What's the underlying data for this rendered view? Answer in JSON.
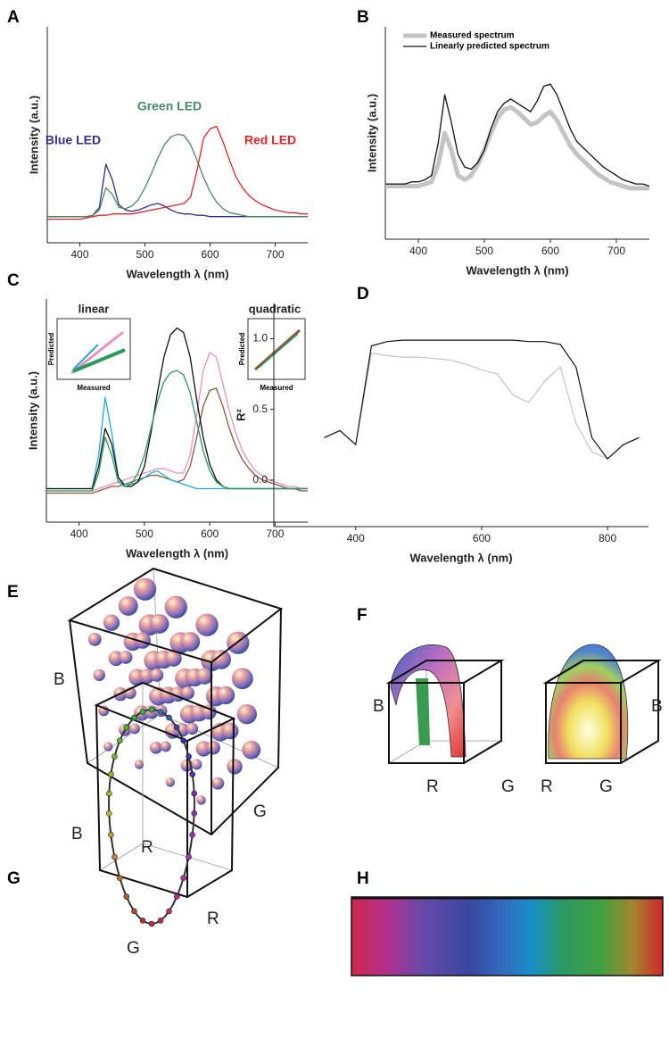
{
  "chart_data": [
    {
      "type": "line",
      "panel": "A",
      "x_label": "Wavelength λ (nm)",
      "y_label": "Intensity (a.u.)",
      "x": [
        350,
        360,
        370,
        380,
        390,
        400,
        410,
        420,
        430,
        440,
        450,
        460,
        470,
        480,
        490,
        500,
        510,
        520,
        530,
        540,
        550,
        560,
        570,
        580,
        590,
        600,
        610,
        620,
        630,
        640,
        650,
        660,
        670,
        680,
        690,
        700,
        710,
        720,
        730,
        740,
        750
      ],
      "xlim": [
        350,
        750
      ],
      "xticks": [
        400,
        500,
        600,
        700
      ],
      "ylim": [
        -0.15,
        1.5
      ],
      "series": [
        {
          "name": "Blue LED",
          "color": "#2e2e8e",
          "values": [
            0.05,
            0.05,
            0.05,
            0.05,
            0.05,
            0.05,
            0.05,
            0.06,
            0.12,
            0.45,
            0.33,
            0.14,
            0.1,
            0.09,
            0.1,
            0.12,
            0.14,
            0.15,
            0.13,
            0.1,
            0.08,
            0.07,
            0.07,
            0.06,
            0.06,
            0.05,
            0.05,
            0.05,
            0.05,
            0.05,
            0.05,
            0.05,
            0.05,
            0.05,
            0.05,
            0.05,
            0.05,
            0.05,
            0.05,
            0.05,
            0.05
          ]
        },
        {
          "name": "Green LED",
          "color": "#4a8a62",
          "values": [
            0.05,
            0.05,
            0.05,
            0.05,
            0.05,
            0.05,
            0.05,
            0.06,
            0.1,
            0.27,
            0.22,
            0.12,
            0.11,
            0.13,
            0.18,
            0.27,
            0.38,
            0.5,
            0.6,
            0.66,
            0.68,
            0.67,
            0.6,
            0.48,
            0.35,
            0.24,
            0.16,
            0.11,
            0.08,
            0.07,
            0.06,
            0.05,
            0.05,
            0.05,
            0.05,
            0.05,
            0.05,
            0.05,
            0.05,
            0.05,
            0.05
          ]
        },
        {
          "name": "Red LED",
          "color": "#e02424",
          "values": [
            0.03,
            0.03,
            0.03,
            0.03,
            0.03,
            0.03,
            0.04,
            0.05,
            0.06,
            0.06,
            0.07,
            0.07,
            0.07,
            0.07,
            0.08,
            0.09,
            0.1,
            0.11,
            0.12,
            0.13,
            0.14,
            0.15,
            0.2,
            0.4,
            0.65,
            0.72,
            0.74,
            0.62,
            0.48,
            0.35,
            0.27,
            0.21,
            0.17,
            0.14,
            0.12,
            0.1,
            0.09,
            0.08,
            0.08,
            0.07,
            0.07
          ]
        }
      ]
    },
    {
      "type": "line",
      "panel": "B",
      "x_label": "Wavelength λ (nm)",
      "y_label": "Intensity (a.u.)",
      "legend": "upper left",
      "x": [
        350,
        360,
        370,
        380,
        390,
        400,
        410,
        420,
        430,
        440,
        450,
        460,
        470,
        480,
        490,
        500,
        510,
        520,
        530,
        540,
        550,
        560,
        570,
        580,
        590,
        600,
        610,
        620,
        630,
        640,
        650,
        660,
        670,
        680,
        690,
        700,
        710,
        720,
        730,
        740,
        750
      ],
      "xlim": [
        350,
        750
      ],
      "xticks": [
        400,
        500,
        600,
        700
      ],
      "ylim": [
        0,
        1
      ],
      "series": [
        {
          "name": "Measured spectrum",
          "color": "#c4c4c4",
          "values": [
            0.25,
            0.25,
            0.25,
            0.25,
            0.25,
            0.25,
            0.26,
            0.27,
            0.35,
            0.5,
            0.42,
            0.3,
            0.28,
            0.3,
            0.35,
            0.42,
            0.5,
            0.57,
            0.61,
            0.62,
            0.6,
            0.57,
            0.54,
            0.55,
            0.58,
            0.6,
            0.56,
            0.5,
            0.44,
            0.4,
            0.37,
            0.34,
            0.31,
            0.29,
            0.27,
            0.26,
            0.25,
            0.24,
            0.24,
            0.24,
            0.24
          ]
        },
        {
          "name": "Linearly predicted spectrum",
          "color": "#111111",
          "values": [
            0.26,
            0.26,
            0.26,
            0.26,
            0.27,
            0.27,
            0.28,
            0.3,
            0.45,
            0.68,
            0.55,
            0.4,
            0.34,
            0.33,
            0.36,
            0.42,
            0.52,
            0.6,
            0.64,
            0.66,
            0.64,
            0.62,
            0.6,
            0.65,
            0.72,
            0.73,
            0.68,
            0.6,
            0.52,
            0.46,
            0.43,
            0.4,
            0.37,
            0.34,
            0.32,
            0.3,
            0.28,
            0.27,
            0.26,
            0.26,
            0.25
          ]
        }
      ]
    },
    {
      "type": "line",
      "panel": "C",
      "x_label": "Wavelength λ (nm)",
      "y_label": "Intensity (a.u.)",
      "x": [
        350,
        360,
        370,
        380,
        390,
        400,
        410,
        420,
        430,
        440,
        450,
        460,
        470,
        480,
        490,
        500,
        510,
        520,
        530,
        540,
        550,
        560,
        570,
        580,
        590,
        600,
        610,
        620,
        630,
        640,
        650,
        660,
        670,
        680,
        690,
        700,
        710,
        720,
        730,
        740,
        750
      ],
      "xlim": [
        350,
        750
      ],
      "xticks": [
        400,
        500,
        600,
        700
      ],
      "ylim": [
        0,
        1
      ],
      "insets": [
        {
          "title": "linear",
          "x_label": "Measured",
          "y_label": "Predicted"
        },
        {
          "title": "quadratic",
          "x_label": "Measured",
          "y_label": "Predicted"
        }
      ],
      "series": [
        {
          "color": "#e890c0",
          "values": [
            0.14,
            0.14,
            0.14,
            0.14,
            0.14,
            0.14,
            0.14,
            0.14,
            0.15,
            0.16,
            0.17,
            0.18,
            0.19,
            0.2,
            0.21,
            0.22,
            0.23,
            0.24,
            0.24,
            0.23,
            0.22,
            0.22,
            0.3,
            0.48,
            0.68,
            0.76,
            0.74,
            0.62,
            0.5,
            0.4,
            0.32,
            0.27,
            0.23,
            0.21,
            0.19,
            0.18,
            0.17,
            0.16,
            0.16,
            0.15,
            0.15
          ]
        },
        {
          "color": "#8b5a3c",
          "values": [
            0.13,
            0.13,
            0.13,
            0.13,
            0.13,
            0.13,
            0.13,
            0.13,
            0.14,
            0.15,
            0.16,
            0.16,
            0.17,
            0.18,
            0.19,
            0.2,
            0.21,
            0.21,
            0.2,
            0.19,
            0.18,
            0.19,
            0.25,
            0.38,
            0.52,
            0.59,
            0.6,
            0.52,
            0.42,
            0.34,
            0.28,
            0.24,
            0.21,
            0.19,
            0.18,
            0.17,
            0.16,
            0.15,
            0.15,
            0.14,
            0.14
          ]
        },
        {
          "color": "#22aadd",
          "values": [
            0.15,
            0.15,
            0.15,
            0.15,
            0.15,
            0.15,
            0.15,
            0.15,
            0.3,
            0.56,
            0.4,
            0.2,
            0.17,
            0.17,
            0.18,
            0.2,
            0.22,
            0.23,
            0.21,
            0.19,
            0.18,
            0.17,
            0.16,
            0.15,
            0.15,
            0.15,
            0.15,
            0.15,
            0.15,
            0.15,
            0.15,
            0.15,
            0.15,
            0.15,
            0.15,
            0.15,
            0.15,
            0.15,
            0.15,
            0.15,
            0.15
          ]
        },
        {
          "color": "#111111",
          "values": [
            0.15,
            0.15,
            0.15,
            0.15,
            0.15,
            0.15,
            0.15,
            0.15,
            0.25,
            0.42,
            0.35,
            0.2,
            0.16,
            0.16,
            0.18,
            0.25,
            0.4,
            0.58,
            0.74,
            0.84,
            0.87,
            0.85,
            0.74,
            0.55,
            0.38,
            0.26,
            0.19,
            0.16,
            0.15,
            0.15,
            0.15,
            0.15,
            0.15,
            0.15,
            0.15,
            0.15,
            0.15,
            0.15,
            0.15,
            0.15,
            0.15
          ]
        },
        {
          "color": "#2a9a5a",
          "values": [
            0.14,
            0.14,
            0.14,
            0.14,
            0.14,
            0.14,
            0.14,
            0.14,
            0.22,
            0.38,
            0.3,
            0.18,
            0.16,
            0.17,
            0.22,
            0.3,
            0.42,
            0.54,
            0.63,
            0.67,
            0.68,
            0.66,
            0.58,
            0.45,
            0.32,
            0.23,
            0.18,
            0.16,
            0.15,
            0.15,
            0.15,
            0.15,
            0.15,
            0.15,
            0.15,
            0.15,
            0.15,
            0.15,
            0.15,
            0.15,
            0.15
          ]
        }
      ]
    },
    {
      "type": "line",
      "panel": "D",
      "x_label": "Wavelength λ (nm)",
      "y_label": "R²",
      "x": [
        350,
        375,
        400,
        425,
        450,
        475,
        500,
        525,
        550,
        575,
        600,
        625,
        650,
        675,
        700,
        725,
        750,
        775,
        800,
        825,
        850
      ],
      "xlim": [
        270,
        865
      ],
      "xticks": [
        400,
        600,
        800
      ],
      "ylim": [
        -0.33,
        1.25
      ],
      "yticks": [
        {
          "value": 0,
          "label": "0.0"
        },
        0.5,
        {
          "value": 1,
          "label": "1.0"
        }
      ],
      "series": [
        {
          "color": "#c4c4c4",
          "values": [
            0.3,
            0.35,
            0.25,
            0.9,
            0.88,
            0.87,
            0.87,
            0.86,
            0.85,
            0.82,
            0.78,
            0.75,
            0.6,
            0.55,
            0.7,
            0.8,
            0.4,
            0.2,
            0.15,
            0.25,
            0.3
          ]
        },
        {
          "color": "#111111",
          "values": [
            0.3,
            0.35,
            0.25,
            0.95,
            0.98,
            0.99,
            0.99,
            0.99,
            0.99,
            0.99,
            0.99,
            0.99,
            0.99,
            0.98,
            0.98,
            0.96,
            0.8,
            0.3,
            0.15,
            0.25,
            0.3
          ]
        }
      ]
    }
  ],
  "illustrations": [
    {
      "panel": "E",
      "axis_labels": [
        "B",
        "R",
        "G"
      ]
    },
    {
      "panel": "F",
      "axis_labels": [
        "B",
        "R",
        "G",
        "R",
        "G",
        "B"
      ]
    },
    {
      "panel": "G",
      "axis_labels": [
        "B",
        "G",
        "R"
      ]
    },
    {
      "panel": "H"
    }
  ]
}
